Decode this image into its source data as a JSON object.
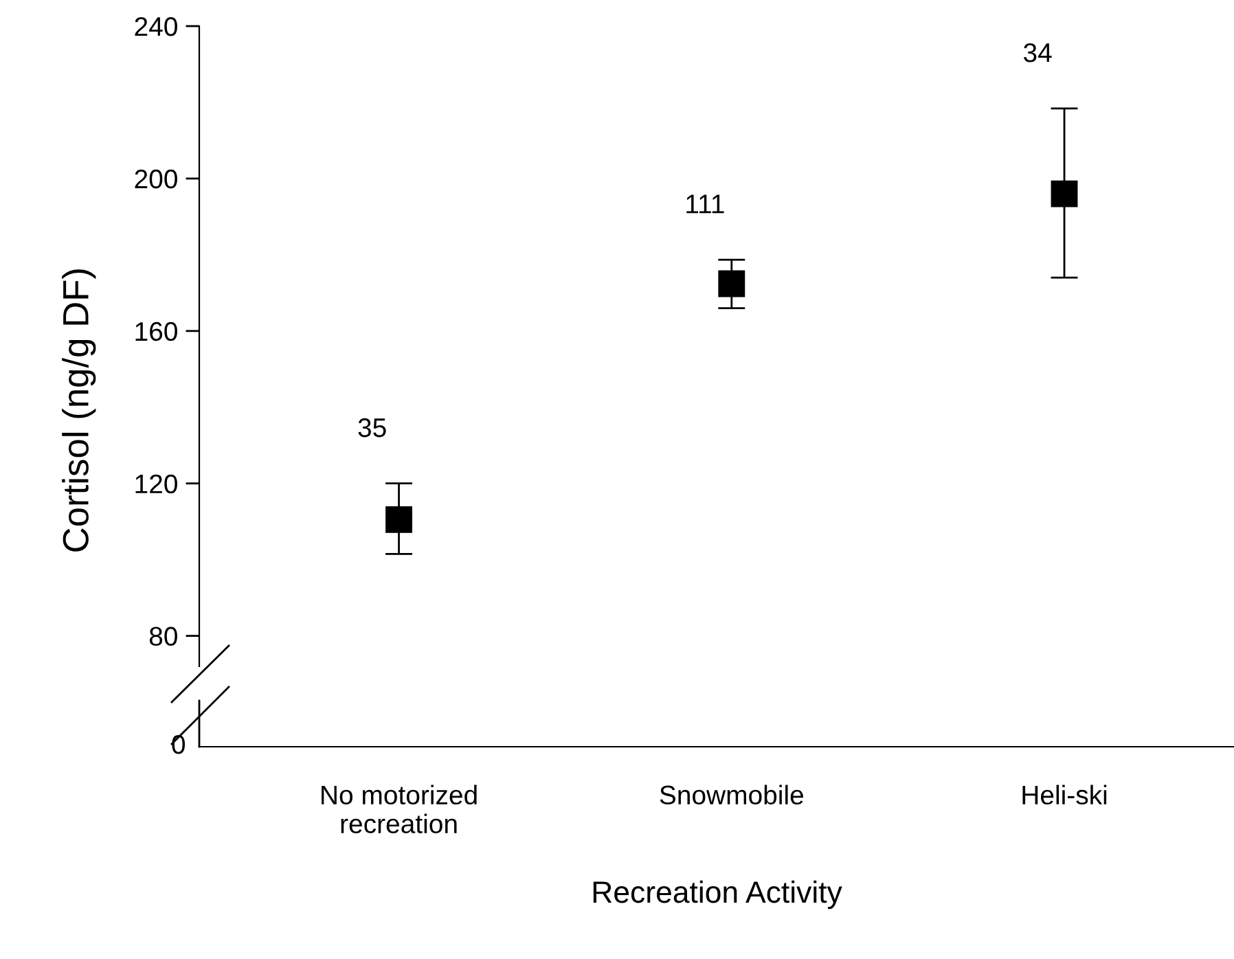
{
  "chart_data": {
    "type": "scatter",
    "ylabel": "Cortisol (ng/g DF)",
    "xlabel": "Recreation Activity",
    "categories": [
      "No motorized\nrecreation",
      "Snowmobile",
      "Heli-ski"
    ],
    "series": [
      {
        "color": "#000000",
        "values": [
          110.5,
          172.4,
          196
        ],
        "errors": [
          [
            101.5,
            120
          ],
          [
            166,
            178.7
          ],
          [
            174,
            218.4
          ]
        ]
      }
    ],
    "marker": "square",
    "ylim": [
      72,
      240
    ],
    "yticks": [
      80,
      120,
      160,
      200,
      240
    ],
    "annotations": [
      "35",
      "111",
      "34",
      "0"
    ]
  }
}
